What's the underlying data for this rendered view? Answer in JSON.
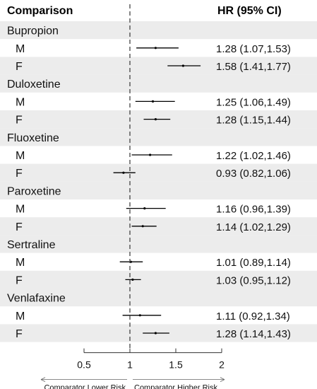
{
  "header": {
    "left": "Comparison",
    "right": "HR (95% CI)"
  },
  "chart_data": {
    "type": "forest",
    "reference_value": 1,
    "xlim": [
      0.5,
      2
    ],
    "ticks": [
      "0.5",
      "1",
      "1.5",
      "2"
    ],
    "left_direction_label": "Comparator Lower Risk",
    "right_direction_label": "Comparator Higher Risk",
    "groups": [
      {
        "name": "Bupropion",
        "rows": [
          {
            "label": "M",
            "hr": 1.28,
            "lo": 1.07,
            "hi": 1.53,
            "text": "1.28 (1.07,1.53)"
          },
          {
            "label": "F",
            "hr": 1.58,
            "lo": 1.41,
            "hi": 1.77,
            "text": "1.58 (1.41,1.77)"
          }
        ]
      },
      {
        "name": "Duloxetine",
        "rows": [
          {
            "label": "M",
            "hr": 1.25,
            "lo": 1.06,
            "hi": 1.49,
            "text": "1.25 (1.06,1.49)"
          },
          {
            "label": "F",
            "hr": 1.28,
            "lo": 1.15,
            "hi": 1.44,
            "text": "1.28 (1.15,1.44)"
          }
        ]
      },
      {
        "name": "Fluoxetine",
        "rows": [
          {
            "label": "M",
            "hr": 1.22,
            "lo": 1.02,
            "hi": 1.46,
            "text": "1.22 (1.02,1.46)"
          },
          {
            "label": "F",
            "hr": 0.93,
            "lo": 0.82,
            "hi": 1.06,
            "text": "0.93 (0.82,1.06)"
          }
        ]
      },
      {
        "name": "Paroxetine",
        "rows": [
          {
            "label": "M",
            "hr": 1.16,
            "lo": 0.96,
            "hi": 1.39,
            "text": "1.16 (0.96,1.39)"
          },
          {
            "label": "F",
            "hr": 1.14,
            "lo": 1.02,
            "hi": 1.29,
            "text": "1.14 (1.02,1.29)"
          }
        ]
      },
      {
        "name": "Sertraline",
        "rows": [
          {
            "label": "M",
            "hr": 1.01,
            "lo": 0.89,
            "hi": 1.14,
            "text": "1.01 (0.89,1.14)"
          },
          {
            "label": "F",
            "hr": 1.03,
            "lo": 0.95,
            "hi": 1.12,
            "text": "1.03 (0.95,1.12)"
          }
        ]
      },
      {
        "name": "Venlafaxine",
        "rows": [
          {
            "label": "M",
            "hr": 1.11,
            "lo": 0.92,
            "hi": 1.34,
            "text": "1.11 (0.92,1.34)"
          },
          {
            "label": "F",
            "hr": 1.28,
            "lo": 1.14,
            "hi": 1.43,
            "text": "1.28 (1.14,1.43)"
          }
        ]
      }
    ],
    "colors": {
      "shade": "#ececec",
      "line": "#000000",
      "reference_line": "#444444",
      "text": "#111111"
    }
  }
}
